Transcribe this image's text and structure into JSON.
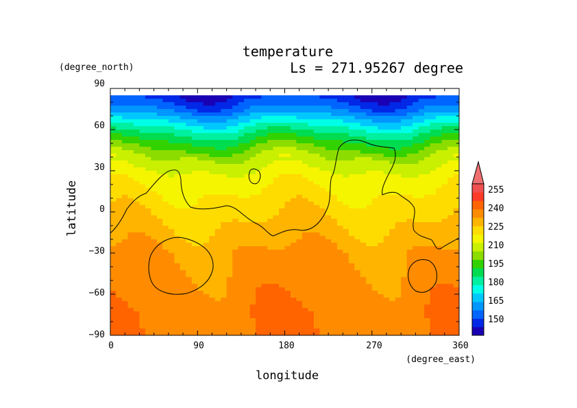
{
  "chart_data": {
    "type": "contour",
    "title": "temperature",
    "subtitle": "Ls = 271.95267 degree",
    "xlabel": "longitude",
    "ylabel": "latitude",
    "xunit": "(degree_east)",
    "yunit": "(degree_north)",
    "xlim": [
      0,
      360
    ],
    "ylim": [
      -90,
      90
    ],
    "data_lat_extent": [
      -90,
      85
    ],
    "x_ticks": [
      "0",
      "90",
      "180",
      "270",
      "360"
    ],
    "y_ticks": [
      "90",
      "60",
      "30",
      "0",
      "−30",
      "−60",
      "−90"
    ],
    "legend": {
      "placement": "right",
      "levels": [
        150,
        165,
        180,
        195,
        210,
        225,
        240,
        255
      ],
      "labels": [
        "150",
        "165",
        "180",
        "195",
        "210",
        "225",
        "240",
        "255"
      ],
      "extend": "max"
    },
    "colormap": [
      "#1a00b4",
      "#0028e6",
      "#0064ff",
      "#0096ff",
      "#00c8ff",
      "#00ffe6",
      "#00f0a0",
      "#00dc50",
      "#32d200",
      "#8cdc00",
      "#c8f000",
      "#f5f500",
      "#ffdc00",
      "#ffb400",
      "#ff8c00",
      "#ff6400",
      "#ff3c28",
      "#f05050",
      "#f07070"
    ],
    "temperature_profile": [
      {
        "lat": 85,
        "t": 150
      },
      {
        "lat": 75,
        "t": 160
      },
      {
        "lat": 65,
        "t": 175
      },
      {
        "lat": 58,
        "t": 185
      },
      {
        "lat": 50,
        "t": 195
      },
      {
        "lat": 40,
        "t": 205
      },
      {
        "lat": 30,
        "t": 212
      },
      {
        "lat": 15,
        "t": 218
      },
      {
        "lat": 0,
        "t": 222
      },
      {
        "lat": -15,
        "t": 226
      },
      {
        "lat": -30,
        "t": 230
      },
      {
        "lat": -45,
        "t": 232
      },
      {
        "lat": -60,
        "t": 234
      },
      {
        "lat": -75,
        "t": 236
      },
      {
        "lat": -90,
        "t": 236
      }
    ]
  }
}
